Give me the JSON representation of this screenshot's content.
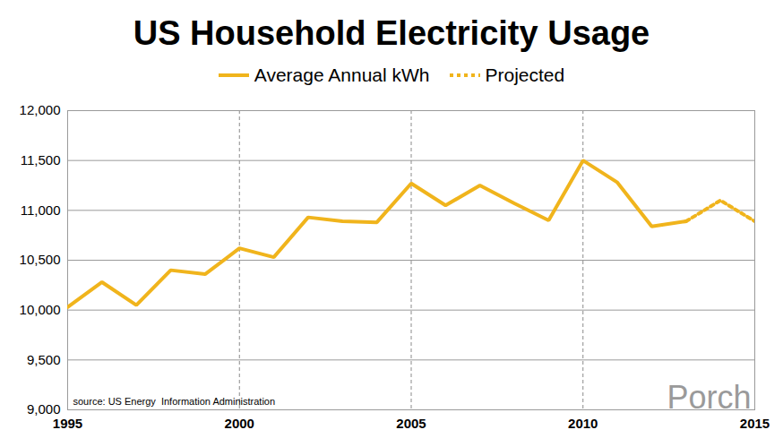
{
  "chart_data": {
    "type": "line",
    "title": "US Household Electricity Usage",
    "x": [
      1995,
      1996,
      1997,
      1998,
      1999,
      2000,
      2001,
      2002,
      2003,
      2004,
      2005,
      2006,
      2007,
      2008,
      2009,
      2010,
      2011,
      2012,
      2013,
      2014,
      2015
    ],
    "series": [
      {
        "name": "Average Annual kWh",
        "color": "#f0b41c",
        "line_style": "solid",
        "values": [
          10030,
          10280,
          10050,
          10400,
          10360,
          10620,
          10530,
          10930,
          10890,
          10880,
          11270,
          11050,
          11250,
          11070,
          10900,
          11500,
          11280,
          10840,
          10890,
          null,
          null
        ]
      },
      {
        "name": "Projected",
        "color": "#f0b41c",
        "line_style": "dotted",
        "values": [
          null,
          null,
          null,
          null,
          null,
          null,
          null,
          null,
          null,
          null,
          null,
          null,
          null,
          null,
          null,
          null,
          null,
          null,
          10890,
          11100,
          10890
        ]
      }
    ],
    "xlim": [
      1995,
      2015
    ],
    "xticks": [
      1995,
      2000,
      2005,
      2010,
      2015
    ],
    "ylim": [
      9000,
      12000
    ],
    "yticks": [
      {
        "value": 9000,
        "label": "9,000"
      },
      {
        "value": 9500,
        "label": "9,500"
      },
      {
        "value": 10000,
        "label": "10,000"
      },
      {
        "value": 10500,
        "label": "10,500"
      },
      {
        "value": 11000,
        "label": "11,000"
      },
      {
        "value": 11500,
        "label": "11,500"
      },
      {
        "value": 12000,
        "label": "12,000"
      }
    ],
    "grid": true,
    "legend": "top",
    "annotations": [
      "source: US Energy  Information Administration",
      "Porch"
    ]
  }
}
